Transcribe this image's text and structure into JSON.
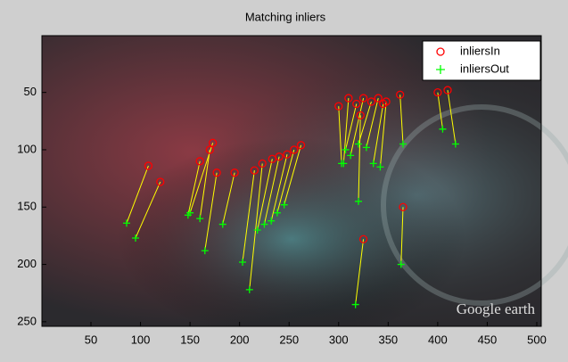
{
  "chart_data": {
    "type": "scatter-match",
    "title": "Matching inliers",
    "xlim": [
      0.5,
      504.5
    ],
    "ylim": [
      0.5,
      254
    ],
    "y_direction": "reverse",
    "xticks": [
      50,
      100,
      150,
      200,
      250,
      300,
      350,
      400,
      450,
      500
    ],
    "yticks": [
      50,
      100,
      150,
      200,
      250
    ],
    "legend": "upper-right",
    "line_color": "#ffff00",
    "annotations": [
      "Google earth"
    ],
    "series": [
      {
        "name": "inliersIn",
        "color": "#ff0000",
        "marker": "circle",
        "x": [
          108,
          120,
          173,
          170,
          160,
          177,
          195,
          215,
          223,
          233,
          240,
          248,
          262,
          255,
          310,
          318,
          325,
          333,
          340,
          345,
          348,
          322,
          362,
          400,
          410,
          325,
          365,
          300
        ],
        "values": [
          114,
          128,
          94,
          100,
          110,
          120,
          120,
          118,
          112,
          108,
          106,
          104,
          96,
          100,
          55,
          60,
          55,
          58,
          55,
          60,
          58,
          70,
          52,
          50,
          48,
          178,
          150,
          62
        ]
      },
      {
        "name": "inliersOut",
        "color": "#00ff00",
        "marker": "plus",
        "x": [
          86,
          95,
          150,
          160,
          148,
          165,
          183,
          203,
          210,
          218,
          225,
          232,
          245,
          238,
          305,
          307,
          312,
          320,
          328,
          335,
          342,
          320,
          365,
          405,
          418,
          317,
          363,
          303
        ],
        "values": [
          164,
          177,
          155,
          160,
          157,
          188,
          165,
          198,
          222,
          170,
          165,
          162,
          148,
          155,
          112,
          100,
          105,
          95,
          98,
          112,
          115,
          145,
          95,
          82,
          95,
          235,
          200,
          112
        ]
      }
    ]
  }
}
